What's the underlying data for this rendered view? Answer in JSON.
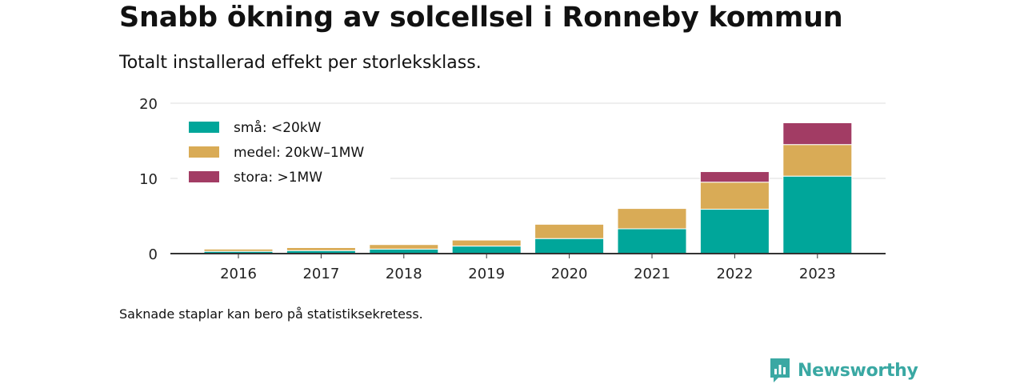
{
  "header": {
    "title": "Snabb ökning av solcellsel i Ronneby kommun",
    "subtitle": "Totalt installerad effekt per storleksklass."
  },
  "footer": {
    "note": "Saknade staplar kan bero på statistiksekretess.",
    "brand": "Newsworthy"
  },
  "colors": {
    "small": "#00a69a",
    "medium": "#d9ab56",
    "large": "#a23c64",
    "brand": "#3aa8a3"
  },
  "chart_data": {
    "type": "bar",
    "stacked": true,
    "categories": [
      "2016",
      "2017",
      "2018",
      "2019",
      "2020",
      "2021",
      "2022",
      "2023"
    ],
    "series": [
      {
        "name": "små: <20kW",
        "color": "#00a69a",
        "values": [
          0.3,
          0.4,
          0.6,
          1.0,
          2.0,
          3.3,
          5.9,
          10.3
        ]
      },
      {
        "name": "medel: 20kW–1MW",
        "color": "#d9ab56",
        "values": [
          0.3,
          0.4,
          0.6,
          0.8,
          1.9,
          2.7,
          3.6,
          4.2
        ]
      },
      {
        "name": "stora: >1MW",
        "color": "#a23c64",
        "values": [
          0,
          0,
          0,
          0,
          0,
          0,
          1.4,
          2.9
        ]
      }
    ],
    "ylim": [
      0,
      20
    ],
    "yticks": [
      0,
      10,
      20
    ],
    "xlabel": "",
    "ylabel": "",
    "grid": true,
    "legend": "top-left"
  }
}
